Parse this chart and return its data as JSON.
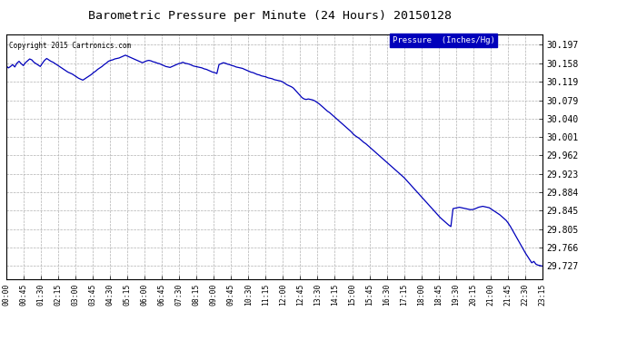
{
  "title": "Barometric Pressure per Minute (24 Hours) 20150128",
  "copyright_text": "Copyright 2015 Cartronics.com",
  "legend_label": "Pressure  (Inches/Hg)",
  "line_color": "#0000bb",
  "background_color": "#ffffff",
  "grid_color": "#b0b0b0",
  "yticks": [
    29.727,
    29.766,
    29.805,
    29.845,
    29.884,
    29.923,
    29.962,
    30.001,
    30.04,
    30.079,
    30.119,
    30.158,
    30.197
  ],
  "ylim": [
    29.7,
    30.22
  ],
  "xtick_labels": [
    "00:00",
    "00:45",
    "01:30",
    "02:15",
    "03:00",
    "03:45",
    "04:30",
    "05:15",
    "06:00",
    "06:45",
    "07:30",
    "08:15",
    "09:00",
    "09:45",
    "10:30",
    "11:15",
    "12:00",
    "12:45",
    "13:30",
    "14:15",
    "15:00",
    "15:45",
    "16:30",
    "17:15",
    "18:00",
    "18:45",
    "19:30",
    "20:15",
    "21:00",
    "21:45",
    "22:30",
    "23:15"
  ],
  "pressure_data": [
    30.152,
    30.148,
    30.151,
    30.155,
    30.15,
    30.158,
    30.162,
    30.157,
    30.153,
    30.159,
    30.163,
    30.167,
    30.165,
    30.16,
    30.157,
    30.154,
    30.151,
    30.158,
    30.164,
    30.168,
    30.165,
    30.162,
    30.16,
    30.157,
    30.154,
    30.151,
    30.148,
    30.145,
    30.142,
    30.139,
    30.137,
    30.135,
    30.132,
    30.129,
    30.126,
    30.124,
    30.122,
    30.125,
    30.128,
    30.131,
    30.134,
    30.138,
    30.141,
    30.145,
    30.148,
    30.151,
    30.155,
    30.158,
    30.162,
    30.164,
    30.165,
    30.167,
    30.168,
    30.169,
    30.171,
    30.173,
    30.175,
    30.173,
    30.171,
    30.169,
    30.167,
    30.165,
    30.163,
    30.161,
    30.159,
    30.161,
    30.163,
    30.164,
    30.163,
    30.161,
    30.16,
    30.158,
    30.157,
    30.155,
    30.153,
    30.151,
    30.15,
    30.149,
    30.151,
    30.153,
    30.155,
    30.157,
    30.158,
    30.16,
    30.158,
    30.157,
    30.156,
    30.154,
    30.152,
    30.151,
    30.15,
    30.149,
    30.148,
    30.146,
    30.145,
    30.143,
    30.141,
    30.139,
    30.138,
    30.136,
    30.155,
    30.157,
    30.159,
    30.158,
    30.156,
    30.155,
    30.153,
    30.152,
    30.15,
    30.149,
    30.148,
    30.147,
    30.145,
    30.143,
    30.141,
    30.139,
    30.138,
    30.136,
    30.134,
    30.133,
    30.131,
    30.13,
    30.129,
    30.127,
    30.126,
    30.125,
    30.123,
    30.122,
    30.121,
    30.12,
    30.118,
    30.115,
    30.112,
    30.11,
    30.108,
    30.105,
    30.1,
    30.095,
    30.09,
    30.085,
    30.082,
    30.081,
    30.082,
    30.081,
    30.08,
    30.078,
    30.075,
    30.072,
    30.068,
    30.064,
    30.06,
    30.056,
    30.053,
    30.049,
    30.045,
    30.041,
    30.037,
    30.033,
    30.029,
    30.025,
    30.021,
    30.017,
    30.013,
    30.008,
    30.004,
    30.001,
    29.998,
    29.994,
    29.99,
    29.987,
    29.983,
    29.979,
    29.975,
    29.971,
    29.967,
    29.963,
    29.959,
    29.955,
    29.951,
    29.947,
    29.943,
    29.939,
    29.935,
    29.931,
    29.927,
    29.923,
    29.919,
    29.915,
    29.91,
    29.905,
    29.9,
    29.895,
    29.89,
    29.885,
    29.88,
    29.875,
    29.87,
    29.865,
    29.86,
    29.855,
    29.85,
    29.845,
    29.84,
    29.835,
    29.83,
    29.826,
    29.822,
    29.818,
    29.814,
    29.811,
    29.849,
    29.85,
    29.851,
    29.852,
    29.851,
    29.85,
    29.849,
    29.848,
    29.847,
    29.847,
    29.848,
    29.85,
    29.852,
    29.853,
    29.854,
    29.853,
    29.852,
    29.851,
    29.848,
    29.845,
    29.842,
    29.839,
    29.836,
    29.832,
    29.828,
    29.824,
    29.818,
    29.811,
    29.803,
    29.795,
    29.787,
    29.779,
    29.771,
    29.763,
    29.755,
    29.748,
    29.741,
    29.734,
    29.737,
    29.731,
    29.729,
    29.728,
    29.727
  ]
}
